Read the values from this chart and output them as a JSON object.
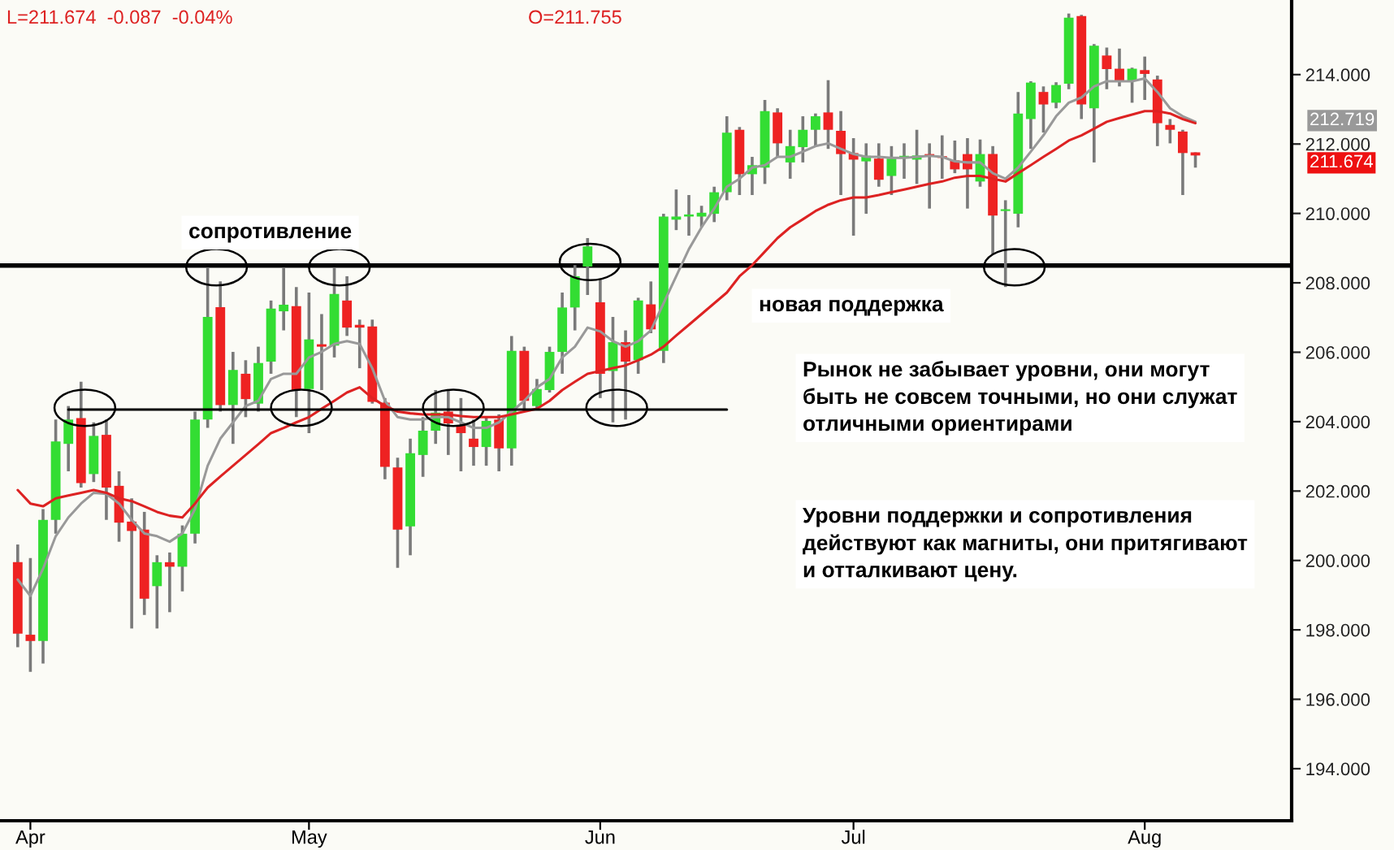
{
  "chart_data": {
    "type": "candlestick",
    "categories": [
      null,
      "Apr",
      null,
      null,
      null,
      null,
      null,
      null,
      null,
      null,
      null,
      null,
      null,
      null,
      null,
      null,
      null,
      null,
      null,
      null,
      null,
      null,
      null,
      "May",
      null,
      null,
      null,
      null,
      null,
      null,
      null,
      null,
      null,
      null,
      null,
      null,
      null,
      null,
      null,
      null,
      null,
      null,
      null,
      null,
      null,
      null,
      "Jun",
      null,
      null,
      null,
      null,
      null,
      null,
      null,
      null,
      null,
      null,
      null,
      null,
      null,
      null,
      null,
      null,
      null,
      null,
      null,
      "Jul",
      null,
      null,
      null,
      null,
      null,
      null,
      null,
      null,
      null,
      null,
      null,
      null,
      null,
      null,
      null,
      null,
      null,
      null,
      null,
      null,
      null,
      null,
      "Aug",
      null,
      null,
      null,
      null
    ],
    "ohlc": [
      [
        199.95,
        200.46,
        197.5,
        197.89
      ],
      [
        197.86,
        200.07,
        196.79,
        197.68
      ],
      [
        197.68,
        201.48,
        197.03,
        201.17
      ],
      [
        201.17,
        204.06,
        200.77,
        203.43
      ],
      [
        203.36,
        204.45,
        202.57,
        204.06
      ],
      [
        204.1,
        205.15,
        202.1,
        202.23
      ],
      [
        202.49,
        203.98,
        202.26,
        203.59
      ],
      [
        203.62,
        204.06,
        201.17,
        202.1
      ],
      [
        202.15,
        202.57,
        200.54,
        201.09
      ],
      [
        201.12,
        201.79,
        198.04,
        200.85
      ],
      [
        200.89,
        201.4,
        198.43,
        198.9
      ],
      [
        199.26,
        200.15,
        198.04,
        199.95
      ],
      [
        199.95,
        200.23,
        198.51,
        199.82
      ],
      [
        199.82,
        201.01,
        199.11,
        200.77
      ],
      [
        200.77,
        204.29,
        200.49,
        204.06
      ],
      [
        204.06,
        208.43,
        203.82,
        207.02
      ],
      [
        207.3,
        208.04,
        204.29,
        204.48
      ],
      [
        204.48,
        206.01,
        203.36,
        205.49
      ],
      [
        205.38,
        205.77,
        204.13,
        204.65
      ],
      [
        204.52,
        206.16,
        204.29,
        205.69
      ],
      [
        205.73,
        207.49,
        205.38,
        207.26
      ],
      [
        207.18,
        208.43,
        206.63,
        207.37
      ],
      [
        207.33,
        207.88,
        204.13,
        204.91
      ],
      [
        204.94,
        207.72,
        203.67,
        206.37
      ],
      [
        206.23,
        207.1,
        204.91,
        206.16
      ],
      [
        206.19,
        208.43,
        205.85,
        207.68
      ],
      [
        207.49,
        208.19,
        206.47,
        206.71
      ],
      [
        206.79,
        206.94,
        205.54,
        206.71
      ],
      [
        206.74,
        206.94,
        204.52,
        204.57
      ],
      [
        204.55,
        204.68,
        202.34,
        202.7
      ],
      [
        202.68,
        202.96,
        199.79,
        200.89
      ],
      [
        200.98,
        203.51,
        200.15,
        203.09
      ],
      [
        203.04,
        204.13,
        202.41,
        203.74
      ],
      [
        203.74,
        204.91,
        203.36,
        204.26
      ],
      [
        204.29,
        204.91,
        203.04,
        203.95
      ],
      [
        203.9,
        204.68,
        202.57,
        203.67
      ],
      [
        203.51,
        204.06,
        202.73,
        203.27
      ],
      [
        203.27,
        204.13,
        202.73,
        204.02
      ],
      [
        204.06,
        204.21,
        202.57,
        203.23
      ],
      [
        203.23,
        206.47,
        202.73,
        206.04
      ],
      [
        206.04,
        206.16,
        204.29,
        204.6
      ],
      [
        204.45,
        205.23,
        204.37,
        204.94
      ],
      [
        204.91,
        206.16,
        204.84,
        206.01
      ],
      [
        206.01,
        207.72,
        205.38,
        207.29
      ],
      [
        207.29,
        208.51,
        206.63,
        208.19
      ],
      [
        208.47,
        209.29,
        207.65,
        209.05
      ],
      [
        207.44,
        208.11,
        204.68,
        205.38
      ],
      [
        205.46,
        207.02,
        203.98,
        206.29
      ],
      [
        206.29,
        206.63,
        204.06,
        205.73
      ],
      [
        205.77,
        207.57,
        205.38,
        207.49
      ],
      [
        207.38,
        208.04,
        206.55,
        206.66
      ],
      [
        206.04,
        209.99,
        205.69,
        209.91
      ],
      [
        209.82,
        210.69,
        209.52,
        209.91
      ],
      [
        209.91,
        210.53,
        209.36,
        209.97
      ],
      [
        209.91,
        210.22,
        209.6,
        210.02
      ],
      [
        209.99,
        210.77,
        209.75,
        210.61
      ],
      [
        210.61,
        212.8,
        210.38,
        212.33
      ],
      [
        212.41,
        212.49,
        210.53,
        211.13
      ],
      [
        211.13,
        211.63,
        210.53,
        211.39
      ],
      [
        211.32,
        213.27,
        210.85,
        212.95
      ],
      [
        212.91,
        213.03,
        211.63,
        212.02
      ],
      [
        211.47,
        212.41,
        211.0,
        211.94
      ],
      [
        211.91,
        212.8,
        211.47,
        212.41
      ],
      [
        212.41,
        212.88,
        211.94,
        212.8
      ],
      [
        212.91,
        213.84,
        211.86,
        212.41
      ],
      [
        212.38,
        212.95,
        210.53,
        211.71
      ],
      [
        211.74,
        212.17,
        209.36,
        211.55
      ],
      [
        211.5,
        212.02,
        209.99,
        211.66
      ],
      [
        211.58,
        212.02,
        210.77,
        210.97
      ],
      [
        211.08,
        211.94,
        210.53,
        211.58
      ],
      [
        211.6,
        212.02,
        211.0,
        211.66
      ],
      [
        211.55,
        212.41,
        210.85,
        211.67
      ],
      [
        211.71,
        212.02,
        210.14,
        211.66
      ],
      [
        211.63,
        212.25,
        211.0,
        211.6
      ],
      [
        211.53,
        212.1,
        211.16,
        211.27
      ],
      [
        211.71,
        212.17,
        210.14,
        211.27
      ],
      [
        210.92,
        212.13,
        210.77,
        211.71
      ],
      [
        211.71,
        211.94,
        208.82,
        209.94
      ],
      [
        210.07,
        210.38,
        207.88,
        210.11
      ],
      [
        209.99,
        213.5,
        209.6,
        212.88
      ],
      [
        212.72,
        213.81,
        211.86,
        213.77
      ],
      [
        213.5,
        213.66,
        212.33,
        213.14
      ],
      [
        213.19,
        213.78,
        213.03,
        213.7
      ],
      [
        213.74,
        215.76,
        213.58,
        215.64
      ],
      [
        215.69,
        215.72,
        212.72,
        213.14
      ],
      [
        213.03,
        214.88,
        211.47,
        214.83
      ],
      [
        214.55,
        214.78,
        213.58,
        214.16
      ],
      [
        214.17,
        214.75,
        213.66,
        213.81
      ],
      [
        213.81,
        214.2,
        213.19,
        214.17
      ],
      [
        214.13,
        214.52,
        213.27,
        214.02
      ],
      [
        213.86,
        213.97,
        211.94,
        212.6
      ],
      [
        212.55,
        212.72,
        212.02,
        212.41
      ],
      [
        212.36,
        212.41,
        210.53,
        211.74
      ],
      [
        211.76,
        211.76,
        211.32,
        211.67
      ]
    ],
    "colors": [
      "#ee2222",
      "#ee2222",
      "#33dd33",
      "#33dd33",
      "#33dd33",
      "#ee2222",
      "#33dd33",
      "#ee2222",
      "#ee2222",
      "#ee2222",
      "#ee2222",
      "#33dd33",
      "#ee2222",
      "#33dd33",
      "#33dd33",
      "#33dd33",
      "#ee2222",
      "#33dd33",
      "#ee2222",
      "#33dd33",
      "#33dd33",
      "#33dd33",
      "#ee2222",
      "#33dd33",
      "#ee2222",
      "#33dd33",
      "#ee2222",
      "#ee2222",
      "#ee2222",
      "#ee2222",
      "#ee2222",
      "#33dd33",
      "#33dd33",
      "#33dd33",
      "#ee2222",
      "#ee2222",
      "#ee2222",
      "#33dd33",
      "#ee2222",
      "#33dd33",
      "#ee2222",
      "#33dd33",
      "#33dd33",
      "#33dd33",
      "#33dd33",
      "#33dd33",
      "#ee2222",
      "#33dd33",
      "#ee2222",
      "#33dd33",
      "#ee2222",
      "#33dd33",
      "#33dd33",
      "#33dd33",
      "#33dd33",
      "#33dd33",
      "#33dd33",
      "#ee2222",
      "#33dd33",
      "#33dd33",
      "#ee2222",
      "#33dd33",
      "#33dd33",
      "#33dd33",
      "#ee2222",
      "#ee2222",
      "#ee2222",
      "#33dd33",
      "#ee2222",
      "#33dd33",
      "#33dd33",
      "#33dd33",
      "#ee2222",
      "#ee2222",
      "#ee2222",
      "#ee2222",
      "#33dd33",
      "#ee2222",
      "#33dd33",
      "#33dd33",
      "#33dd33",
      "#ee2222",
      "#33dd33",
      "#33dd33",
      "#ee2222",
      "#33dd33",
      "#ee2222",
      "#ee2222",
      "#33dd33",
      "#ee2222",
      "#ee2222",
      "#ee2222",
      "#ee2222",
      "#ee2222"
    ],
    "series": [
      {
        "type": "line",
        "color": "#999999",
        "values": [
          199.45,
          198.98,
          199.76,
          200.7,
          201.24,
          201.64,
          201.95,
          201.92,
          201.64,
          201.17,
          200.78,
          200.7,
          200.54,
          200.78,
          201.48,
          202.73,
          203.51,
          203.98,
          204.45,
          204.6,
          205.23,
          205.38,
          205.38,
          205.85,
          206.01,
          206.24,
          206.32,
          206.24,
          205.54,
          204.6,
          204.13,
          204.06,
          204.06,
          204.13,
          204.13,
          203.98,
          203.82,
          203.82,
          203.98,
          204.29,
          204.6,
          204.99,
          205.23,
          205.85,
          206.16,
          206.71,
          206.6,
          206.32,
          206.16,
          206.32,
          206.63,
          207.41,
          208.19,
          208.97,
          209.6,
          210.14,
          210.77,
          211.0,
          211.32,
          211.39,
          211.63,
          211.63,
          211.78,
          211.94,
          212.02,
          211.86,
          211.71,
          211.63,
          211.63,
          211.6,
          211.6,
          211.63,
          211.66,
          211.63,
          211.5,
          211.47,
          211.47,
          211.16,
          211.0,
          211.32,
          211.78,
          212.25,
          212.8,
          213.19,
          213.34,
          213.66,
          213.81,
          213.81,
          213.81,
          213.89,
          213.5,
          213.03,
          212.8,
          212.64
        ]
      },
      {
        "type": "line",
        "color": "#dd2222",
        "values": [
          202.03,
          201.64,
          201.56,
          201.79,
          201.87,
          201.95,
          202.03,
          201.95,
          201.79,
          201.71,
          201.56,
          201.4,
          201.29,
          201.24,
          201.64,
          202.1,
          202.42,
          202.73,
          203.04,
          203.35,
          203.67,
          203.82,
          203.98,
          204.13,
          204.37,
          204.6,
          204.84,
          204.99,
          204.68,
          204.45,
          204.29,
          204.24,
          204.21,
          204.21,
          204.21,
          204.16,
          204.13,
          204.13,
          204.13,
          204.21,
          204.29,
          204.37,
          204.6,
          204.91,
          205.15,
          205.38,
          205.46,
          205.54,
          205.62,
          205.77,
          205.93,
          206.16,
          206.48,
          206.79,
          207.1,
          207.41,
          207.72,
          208.19,
          208.51,
          208.9,
          209.29,
          209.6,
          209.83,
          210.07,
          210.25,
          210.38,
          210.46,
          210.46,
          210.53,
          210.61,
          210.69,
          210.77,
          210.85,
          210.92,
          211.03,
          211.08,
          211.08,
          211.0,
          210.92,
          211.16,
          211.39,
          211.63,
          211.86,
          212.1,
          212.25,
          212.44,
          212.64,
          212.75,
          212.85,
          212.95,
          212.95,
          212.88,
          212.72,
          212.6
        ]
      },
      {
        "type": "line",
        "color": "#000000",
        "values": [
          null,
          null,
          null,
          null,
          204.35,
          204.35,
          204.35,
          204.35,
          204.35,
          204.35,
          204.35,
          204.35,
          204.35,
          204.35,
          204.35,
          204.35,
          204.35,
          204.35,
          204.35,
          204.35,
          204.35,
          204.35,
          204.35,
          204.35,
          204.35,
          204.35,
          204.35,
          204.35,
          204.35,
          204.35,
          204.35,
          204.35,
          204.35,
          204.35,
          204.35,
          204.35,
          204.35,
          204.35,
          204.35,
          204.35,
          204.35,
          204.35,
          204.35,
          204.35,
          204.35,
          204.35,
          204.35,
          204.35,
          204.35,
          204.35,
          204.35,
          204.35,
          204.35,
          204.35,
          204.35,
          204.35,
          204.35,
          null,
          null,
          null,
          null,
          null,
          null,
          null,
          null,
          null,
          null,
          null,
          null,
          null,
          null,
          null,
          null,
          null,
          null,
          null,
          null,
          null,
          null,
          null,
          null,
          null,
          null,
          null,
          null,
          null,
          null,
          null,
          null,
          null,
          null,
          null,
          null,
          null
        ]
      }
    ],
    "ref_lines": [
      {
        "axis": "y",
        "value": 208.5,
        "color": "#000000"
      }
    ],
    "ylim": [
      192.5,
      216.15
    ],
    "yticks": [
      {
        "value": 194,
        "label": "194.000"
      },
      {
        "value": 196,
        "label": "196.000"
      },
      {
        "value": 198,
        "label": "198.000"
      },
      {
        "value": 200,
        "label": "200.000"
      },
      {
        "value": 202,
        "label": "202.000"
      },
      {
        "value": 204,
        "label": "204.000"
      },
      {
        "value": 206,
        "label": "206.000"
      },
      {
        "value": 208,
        "label": "208.000"
      },
      {
        "value": 210,
        "label": "210.000"
      },
      {
        "value": 212,
        "label": "212.000"
      },
      {
        "value": 214,
        "label": "214.000"
      }
    ],
    "annotations": [
      "L=211.674  -0.087  -0.04%",
      "O=211.755",
      "сопротивление",
      "новая поддержка",
      "Рынок не забывает уровни, они могут\nбыть не совсем точными, но они служат\nотличными ориентирами",
      "Уровни поддержки и сопротивления\nдействуют как магниты, они притягивают\nи отталкивают цену.",
      "212.719",
      "211.674"
    ]
  }
}
